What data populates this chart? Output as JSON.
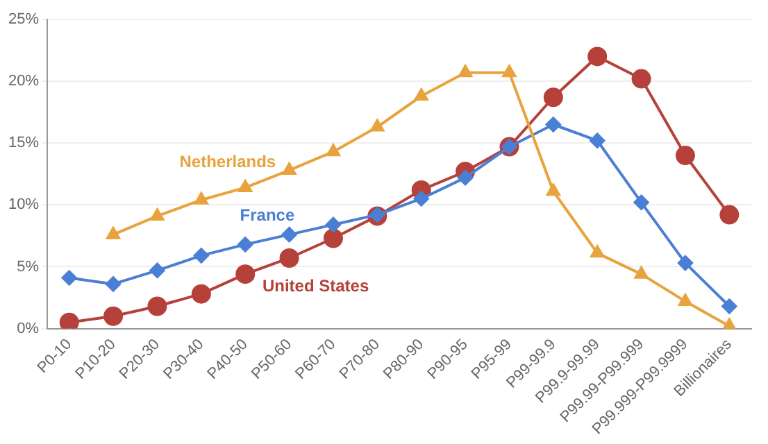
{
  "chart_data": {
    "type": "line",
    "categories": [
      "P0-10",
      "P10-20",
      "P20-30",
      "P30-40",
      "P40-50",
      "P50-60",
      "P60-70",
      "P70-80",
      "P80-90",
      "P90-95",
      "P95-99",
      "P99-99.9",
      "P99.9-99.99",
      "P99.99-P99.999",
      "P99.999-P99.9999",
      "Billionaires"
    ],
    "series": [
      {
        "name": "Netherlands",
        "color": "#e8a33d",
        "marker": "triangle",
        "values": [
          null,
          7.6,
          9.1,
          10.4,
          11.4,
          12.8,
          14.3,
          16.3,
          18.8,
          20.7,
          20.7,
          11.1,
          6.1,
          4.4,
          2.2,
          0.2
        ]
      },
      {
        "name": "France",
        "color": "#4a7fd4",
        "marker": "diamond",
        "values": [
          4.1,
          3.6,
          4.7,
          5.9,
          6.8,
          7.6,
          8.4,
          9.2,
          10.5,
          12.2,
          14.7,
          16.5,
          15.2,
          10.2,
          5.3,
          1.8
        ]
      },
      {
        "name": "United States",
        "color": "#b5413a",
        "marker": "circle",
        "values": [
          0.5,
          1.0,
          1.8,
          2.8,
          4.4,
          5.7,
          7.3,
          9.1,
          11.2,
          12.7,
          14.7,
          18.7,
          22.0,
          20.2,
          14.0,
          9.2
        ]
      }
    ],
    "ylim": [
      0,
      25
    ],
    "yticks": [
      {
        "value": 0,
        "label": "0%"
      },
      {
        "value": 5,
        "label": "5%"
      },
      {
        "value": 10,
        "label": "10%"
      },
      {
        "value": 15,
        "label": "15%"
      },
      {
        "value": 20,
        "label": "20%"
      },
      {
        "value": 25,
        "label": "25%"
      }
    ],
    "grid": "y",
    "legend": false
  }
}
